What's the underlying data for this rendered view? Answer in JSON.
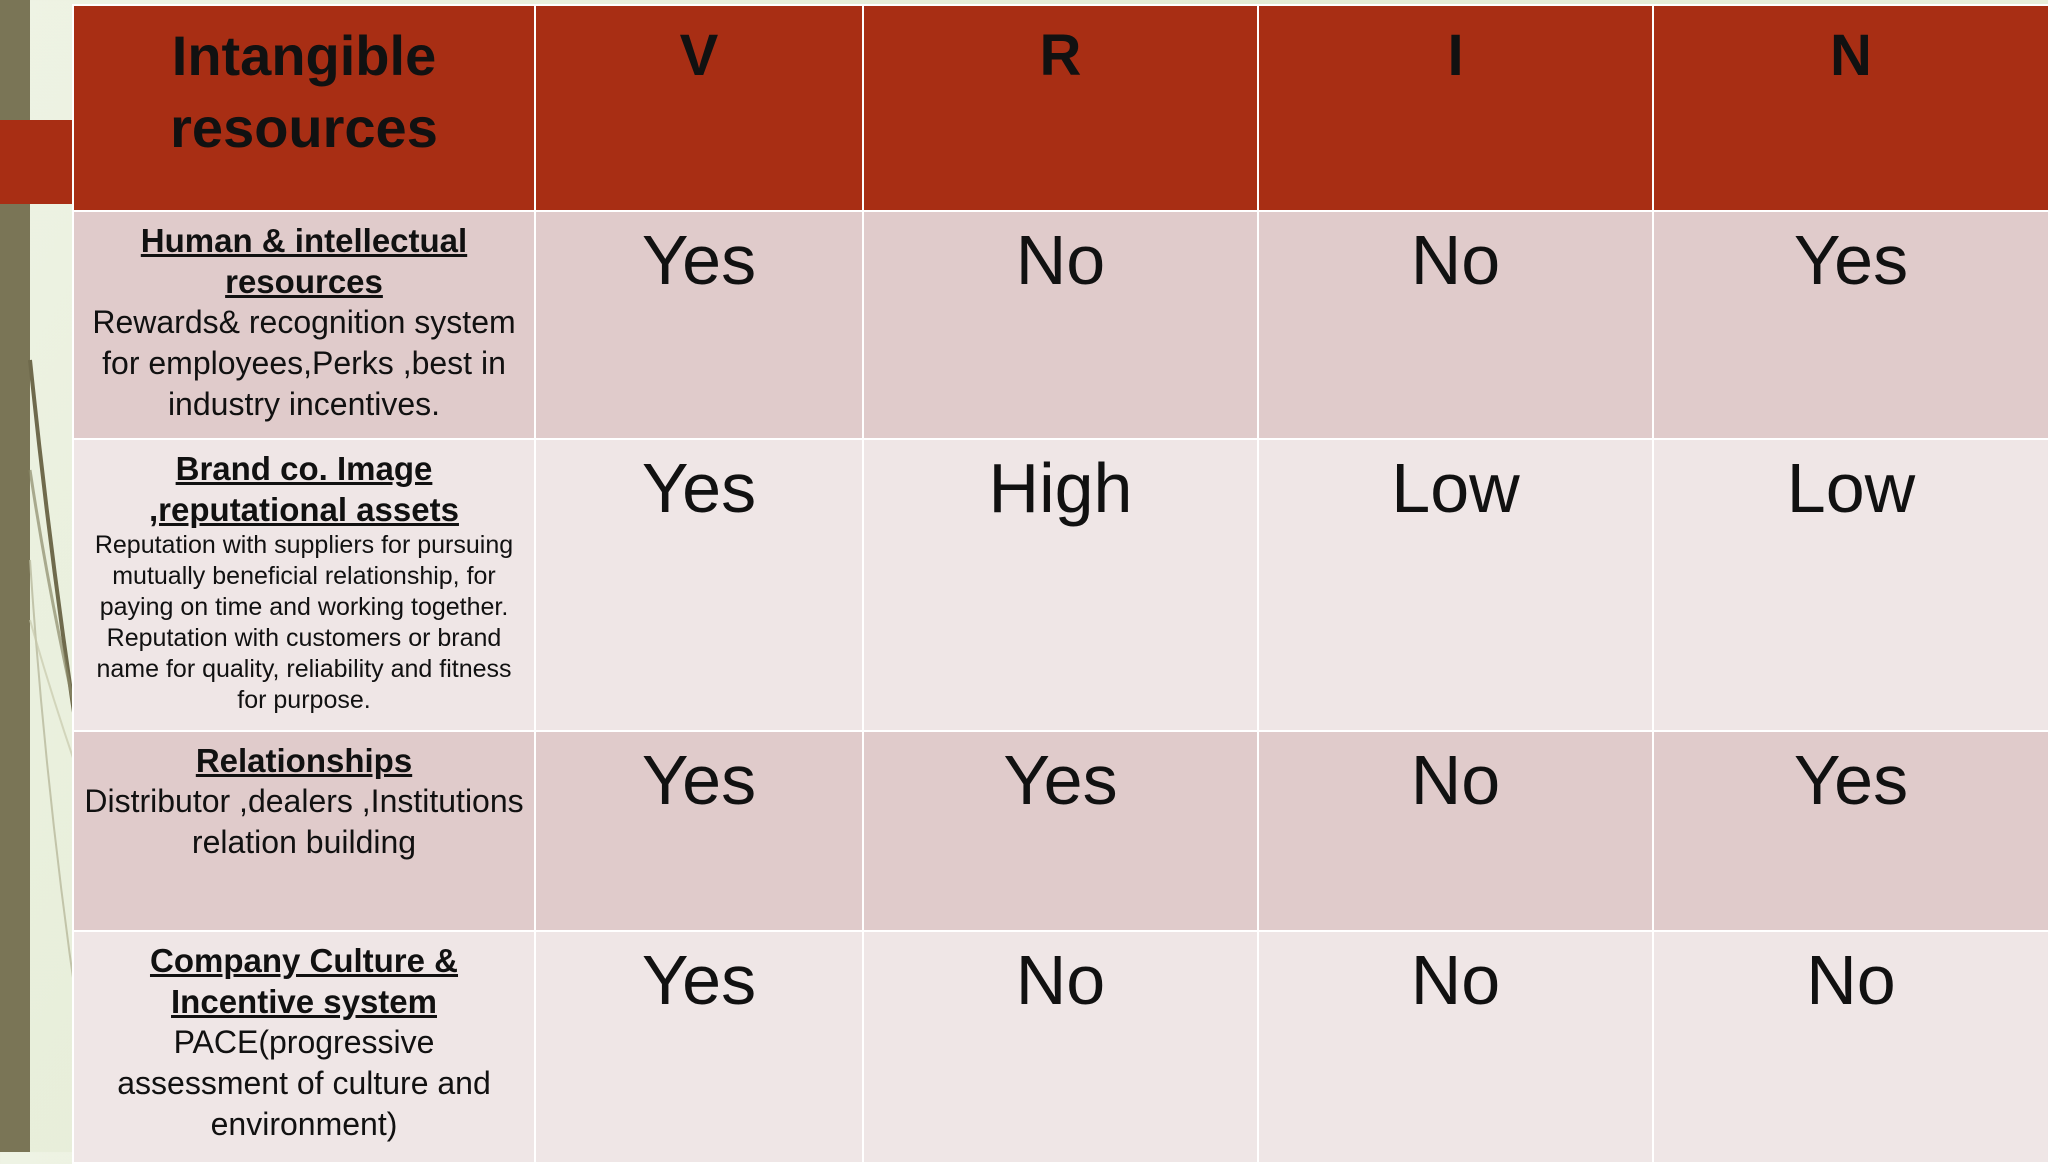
{
  "table": {
    "headers": [
      "Intangible resources",
      "V",
      "R",
      "I",
      "N"
    ],
    "rows": [
      {
        "title": "Human & intellectual resources",
        "description": "Rewards& recognition system for employees,Perks ,best in industry incentives.",
        "values": [
          "Yes",
          "No",
          "No",
          "Yes"
        ]
      },
      {
        "title": "Brand co. Image ,reputational assets",
        "description": "Reputation with suppliers for pursuing mutually beneficial relationship, for paying on time and working together. Reputation with customers or brand name for quality, reliability and fitness for purpose.",
        "values": [
          "Yes",
          "High",
          "Low",
          "Low"
        ]
      },
      {
        "title": "Relationships",
        "description": "Distributor ,dealers ,Institutions relation building",
        "values": [
          "Yes",
          "Yes",
          "No",
          "Yes"
        ]
      },
      {
        "title": "Company Culture & Incentive system",
        "description": "PACE(progressive assessment of culture and environment)",
        "values": [
          "Yes",
          "No",
          "No",
          "No"
        ]
      }
    ]
  },
  "colors": {
    "header_bg": "#a82e14",
    "row_odd_bg": "#e0cbcb",
    "row_even_bg": "#efe6e6",
    "background": "#e3ebd3",
    "side_bar": "#7a7556"
  }
}
